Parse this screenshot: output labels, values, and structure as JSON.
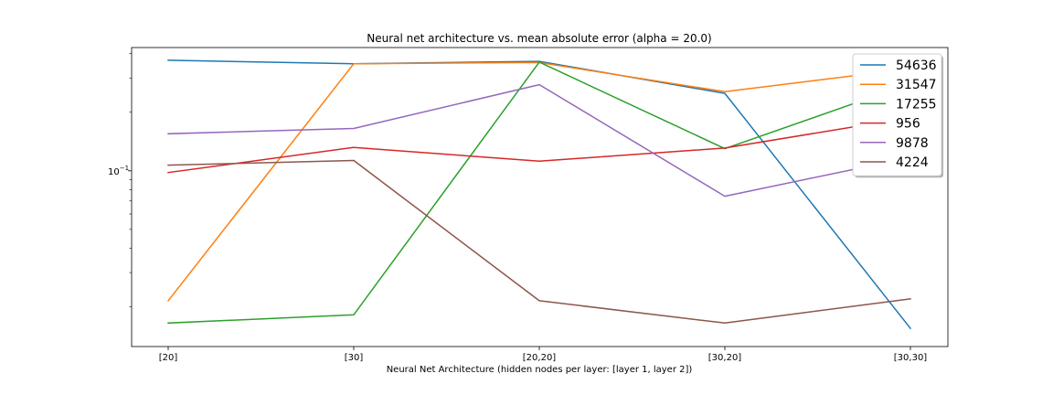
{
  "chart_data": {
    "type": "line",
    "title": "Neural net architecture vs. mean absolute error (alpha = 20.0)",
    "xlabel": "Neural Net Architecture (hidden nodes per layer: [layer 1, layer 2])",
    "ylabel": "",
    "yscale": "log",
    "categories": [
      "[20]",
      "[30]",
      "[20,20]",
      "[30,20]",
      "[30,30]"
    ],
    "ylim": [
      0.0125,
      0.43
    ],
    "ytick_labels": [
      {
        "value": 0.1,
        "base": "10",
        "exp": "−1"
      }
    ],
    "yminor_ticks": [
      0.02,
      0.03,
      0.04,
      0.05,
      0.06,
      0.07,
      0.08,
      0.09,
      0.2,
      0.3,
      0.4
    ],
    "grid": false,
    "legend_position": "top-right",
    "series": [
      {
        "name": "54636",
        "color": "#1f77b4",
        "values": [
          0.37,
          0.355,
          0.365,
          0.25,
          0.0155
        ]
      },
      {
        "name": "31547",
        "color": "#ff7f0e",
        "values": [
          0.0215,
          0.355,
          0.36,
          0.255,
          0.335
        ]
      },
      {
        "name": "17255",
        "color": "#2ca02c",
        "values": [
          0.0165,
          0.0182,
          0.362,
          0.13,
          0.28
        ]
      },
      {
        "name": "956",
        "color": "#d62728",
        "values": [
          0.098,
          0.132,
          0.112,
          0.131,
          0.188
        ]
      },
      {
        "name": "9878",
        "color": "#9467bd",
        "values": [
          0.155,
          0.165,
          0.277,
          0.074,
          0.117
        ]
      },
      {
        "name": "4224",
        "color": "#8c564b",
        "values": [
          0.107,
          0.113,
          0.0215,
          0.0165,
          0.022
        ]
      }
    ]
  }
}
